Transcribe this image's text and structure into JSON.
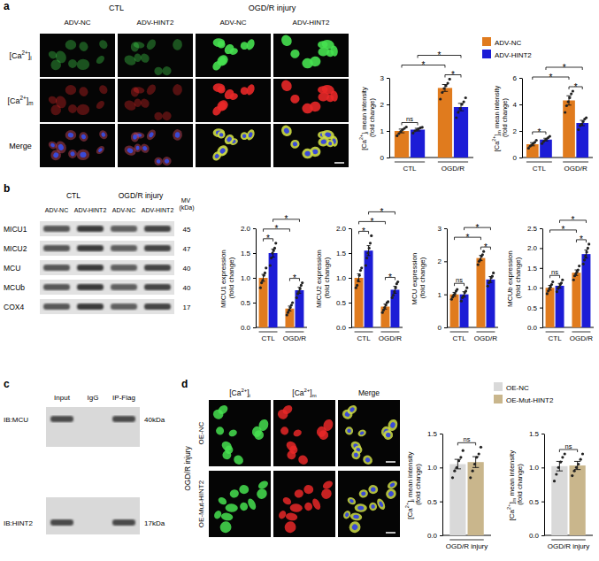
{
  "panels": {
    "a": {
      "letter": "a",
      "groups": [
        {
          "label": "CTL",
          "columns": [
            "ADV-NC",
            "ADV-HINT2"
          ]
        },
        {
          "label": "OGD/R injury",
          "columns": [
            "ADV-NC",
            "ADV-HINT2"
          ]
        }
      ],
      "rows": [
        "[Ca2+]i",
        "[Ca2+]m",
        "Merge"
      ]
    },
    "b": {
      "letter": "b",
      "groups": [
        {
          "label": "CTL",
          "columns": [
            "ADV-NC",
            "ADV-HINT2"
          ]
        },
        {
          "label": "OGD/R injury",
          "columns": [
            "ADV-NC",
            "ADV-HINT2"
          ]
        }
      ],
      "mw_label": "MV (kDa)",
      "bands": [
        {
          "name": "MICU1",
          "mw": 45
        },
        {
          "name": "MICU2",
          "mw": 47
        },
        {
          "name": "MCU",
          "mw": 40
        },
        {
          "name": "MCUb",
          "mw": 40
        },
        {
          "name": "COX4",
          "mw": 17
        }
      ]
    },
    "c": {
      "letter": "c",
      "lanes": [
        "Input",
        "IgG",
        "IP-Flag"
      ],
      "blots": [
        {
          "label": "IB:MCU",
          "mw": "40kDa"
        },
        {
          "label": "IB:HINT2",
          "mw": "17kDa"
        }
      ]
    },
    "d": {
      "letter": "d",
      "condition": "OGD/R injury",
      "rows": [
        "OE-NC",
        "OE-Mut-HINT2"
      ],
      "columns": [
        "[Ca2+]i",
        "[Ca2+]m",
        "Merge"
      ]
    }
  },
  "chart_data": [
    {
      "type": "bar",
      "ylabel": "[Ca2+]i mean intensity (fold change)",
      "legend": "top",
      "categories": [
        "CTL",
        "OGD/R"
      ],
      "ylim": [
        0,
        3
      ],
      "yticks": [
        0,
        1,
        2,
        3
      ],
      "series": [
        {
          "name": "ADV-NC",
          "color": "#E07B1E",
          "values": [
            1.0,
            2.62
          ],
          "errors": [
            0.07,
            0.13
          ],
          "points": [
            [
              0.82,
              0.9,
              0.98,
              1.05,
              1.1,
              1.15
            ],
            [
              2.2,
              2.45,
              2.6,
              2.7,
              2.8,
              2.95
            ]
          ]
        },
        {
          "name": "ADV-HINT2",
          "color": "#1C1CD6",
          "values": [
            1.05,
            1.9
          ],
          "errors": [
            0.05,
            0.14
          ],
          "points": [
            [
              0.92,
              1.0,
              1.04,
              1.08,
              1.12,
              1.14
            ],
            [
              1.5,
              1.7,
              1.85,
              2.0,
              2.1,
              2.25
            ]
          ]
        }
      ],
      "annotations": [
        {
          "text": "ns",
          "bars": [
            0,
            1
          ]
        },
        {
          "text": "*",
          "bars": [
            2,
            3
          ]
        },
        {
          "text": "*",
          "bars": [
            0,
            2
          ]
        },
        {
          "text": "*",
          "bars": [
            1,
            3
          ]
        }
      ]
    },
    {
      "type": "bar",
      "ylabel": "[Ca2+]m mean intensity (fold change)",
      "categories": [
        "CTL",
        "OGD/R"
      ],
      "ylim": [
        0,
        6
      ],
      "yticks": [
        0,
        2,
        4,
        6
      ],
      "series": [
        {
          "name": "ADV-NC",
          "color": "#E07B1E",
          "values": [
            1.0,
            4.3
          ],
          "errors": [
            0.12,
            0.35
          ],
          "points": [
            [
              0.7,
              0.85,
              0.95,
              1.05,
              1.15,
              1.3
            ],
            [
              3.4,
              3.9,
              4.2,
              4.5,
              4.8,
              5.0
            ]
          ]
        },
        {
          "name": "ADV-HINT2",
          "color": "#1C1CD6",
          "values": [
            1.35,
            2.6
          ],
          "errors": [
            0.1,
            0.2
          ],
          "points": [
            [
              1.05,
              1.2,
              1.3,
              1.4,
              1.5,
              1.6
            ],
            [
              2.1,
              2.4,
              2.5,
              2.7,
              2.9,
              3.0
            ]
          ]
        }
      ],
      "annotations": [
        {
          "text": "*",
          "bars": [
            0,
            1
          ]
        },
        {
          "text": "*",
          "bars": [
            2,
            3
          ]
        },
        {
          "text": "*",
          "bars": [
            0,
            2
          ]
        },
        {
          "text": "*",
          "bars": [
            1,
            3
          ]
        }
      ]
    },
    {
      "type": "bar",
      "ylabel": "MICU1 expression (fold change)",
      "categories": [
        "CTL",
        "OGD/R"
      ],
      "ylim": [
        0,
        2
      ],
      "yticks": [
        {
          "value": 0,
          "label": "0.0"
        },
        {
          "value": 0.5,
          "label": "0.5"
        },
        {
          "value": 1,
          "label": "1.0"
        },
        {
          "value": 1.5,
          "label": "1.5"
        },
        {
          "value": 2,
          "label": "2.0"
        }
      ],
      "series": [
        {
          "name": "ADV-NC",
          "color": "#E07B1E",
          "values": [
            1.0,
            0.38
          ],
          "errors": [
            0.07,
            0.05
          ],
          "points": [
            [
              0.8,
              0.9,
              0.95,
              1.05,
              1.1,
              1.2
            ],
            [
              0.25,
              0.3,
              0.35,
              0.4,
              0.45,
              0.5
            ]
          ]
        },
        {
          "name": "ADV-HINT2",
          "color": "#1C1CD6",
          "values": [
            1.5,
            0.75
          ],
          "errors": [
            0.08,
            0.06
          ],
          "points": [
            [
              1.25,
              1.4,
              1.5,
              1.55,
              1.6,
              1.7
            ],
            [
              0.6,
              0.68,
              0.72,
              0.78,
              0.85,
              0.9
            ]
          ]
        }
      ],
      "annotations": [
        {
          "text": "*",
          "bars": [
            0,
            1
          ]
        },
        {
          "text": "*",
          "bars": [
            2,
            3
          ]
        },
        {
          "text": "*",
          "bars": [
            0,
            2
          ]
        },
        {
          "text": "*",
          "bars": [
            1,
            3
          ]
        }
      ]
    },
    {
      "type": "bar",
      "ylabel": "MICU2 expression (fold change)",
      "categories": [
        "CTL",
        "OGD/R"
      ],
      "ylim": [
        0,
        2
      ],
      "yticks": [
        {
          "value": 0,
          "label": "0.0"
        },
        {
          "value": 0.5,
          "label": "0.5"
        },
        {
          "value": 1,
          "label": "1.0"
        },
        {
          "value": 1.5,
          "label": "1.5"
        },
        {
          "value": 2,
          "label": "2.0"
        }
      ],
      "series": [
        {
          "name": "ADV-NC",
          "color": "#E07B1E",
          "values": [
            1.0,
            0.42
          ],
          "errors": [
            0.08,
            0.05
          ],
          "points": [
            [
              0.8,
              0.85,
              0.95,
              1.05,
              1.15,
              1.2
            ],
            [
              0.3,
              0.35,
              0.4,
              0.45,
              0.5,
              0.52
            ]
          ]
        },
        {
          "name": "ADV-HINT2",
          "color": "#1C1CD6",
          "values": [
            1.55,
            0.76
          ],
          "errors": [
            0.1,
            0.07
          ],
          "points": [
            [
              1.25,
              1.4,
              1.5,
              1.6,
              1.7,
              1.85
            ],
            [
              0.6,
              0.65,
              0.72,
              0.8,
              0.88,
              0.92
            ]
          ]
        }
      ],
      "annotations": [
        {
          "text": "*",
          "bars": [
            0,
            1
          ]
        },
        {
          "text": "*",
          "bars": [
            2,
            3
          ]
        },
        {
          "text": "*",
          "bars": [
            0,
            2
          ]
        },
        {
          "text": "*",
          "bars": [
            1,
            3
          ]
        }
      ]
    },
    {
      "type": "bar",
      "ylabel": "MCU expression (fold change)",
      "categories": [
        "CTL",
        "OGD/R"
      ],
      "ylim": [
        0,
        3
      ],
      "yticks": [
        0,
        1,
        2,
        3
      ],
      "series": [
        {
          "name": "ADV-NC",
          "color": "#E07B1E",
          "values": [
            1.0,
            2.1
          ],
          "errors": [
            0.06,
            0.08
          ],
          "points": [
            [
              0.85,
              0.92,
              0.98,
              1.02,
              1.1,
              1.15
            ],
            [
              1.9,
              2.0,
              2.05,
              2.15,
              2.2,
              2.3
            ]
          ]
        },
        {
          "name": "ADV-HINT2",
          "color": "#1C1CD6",
          "values": [
            1.0,
            1.45
          ],
          "errors": [
            0.08,
            0.09
          ],
          "points": [
            [
              0.8,
              0.9,
              0.95,
              1.05,
              1.1,
              1.2
            ],
            [
              1.25,
              1.35,
              1.4,
              1.5,
              1.55,
              1.65
            ]
          ]
        }
      ],
      "annotations": [
        {
          "text": "ns",
          "bars": [
            0,
            1
          ]
        },
        {
          "text": "*",
          "bars": [
            2,
            3
          ]
        },
        {
          "text": "*",
          "bars": [
            0,
            2
          ]
        },
        {
          "text": "*",
          "bars": [
            1,
            3
          ]
        }
      ]
    },
    {
      "type": "bar",
      "ylabel": "MCUb expression (fold change)",
      "categories": [
        "CTL",
        "OGD/R"
      ],
      "ylim": [
        0,
        2.5
      ],
      "yticks": [
        {
          "value": 0,
          "label": "0.0"
        },
        {
          "value": 0.5,
          "label": "0.5"
        },
        {
          "value": 1,
          "label": "1.0"
        },
        {
          "value": 1.5,
          "label": "1.5"
        },
        {
          "value": 2,
          "label": "2.0"
        },
        {
          "value": 2.5,
          "label": "2.5"
        }
      ],
      "series": [
        {
          "name": "ADV-NC",
          "color": "#E07B1E",
          "values": [
            1.0,
            1.38
          ],
          "errors": [
            0.06,
            0.07
          ],
          "points": [
            [
              0.85,
              0.92,
              0.98,
              1.02,
              1.08,
              1.15
            ],
            [
              1.2,
              1.3,
              1.35,
              1.4,
              1.45,
              1.55
            ]
          ]
        },
        {
          "name": "ADV-HINT2",
          "color": "#1C1CD6",
          "values": [
            1.05,
            1.85
          ],
          "errors": [
            0.06,
            0.1
          ],
          "points": [
            [
              0.9,
              0.98,
              1.02,
              1.08,
              1.12,
              1.2
            ],
            [
              1.6,
              1.7,
              1.8,
              1.9,
              2.0,
              2.1
            ]
          ]
        }
      ],
      "annotations": [
        {
          "text": "ns",
          "bars": [
            0,
            1
          ]
        },
        {
          "text": "*",
          "bars": [
            2,
            3
          ]
        },
        {
          "text": "*",
          "bars": [
            0,
            2
          ]
        },
        {
          "text": "*",
          "bars": [
            1,
            3
          ]
        }
      ]
    },
    {
      "type": "bar",
      "ylabel": "[Ca2+]i mean intensity (fold change)",
      "legend": "top",
      "categories": [
        "OGD/R injury"
      ],
      "ylim": [
        0,
        1.5
      ],
      "yticks": [
        {
          "value": 0,
          "label": "0.0"
        },
        {
          "value": 0.5,
          "label": "0.5"
        },
        {
          "value": 1,
          "label": "1.0"
        },
        {
          "value": 1.5,
          "label": "1.5"
        }
      ],
      "series": [
        {
          "name": "OE-NC",
          "color": "#D9D9D9",
          "values": [
            1.05
          ],
          "errors": [
            0.07
          ],
          "points": [
            [
              0.85,
              0.95,
              1.0,
              1.1,
              1.15,
              1.25
            ]
          ]
        },
        {
          "name": "OE-Mut-HINT2",
          "color": "#C9B68C",
          "values": [
            1.08
          ],
          "errors": [
            0.08
          ],
          "points": [
            [
              0.85,
              0.95,
              1.05,
              1.15,
              1.2,
              1.3
            ]
          ]
        }
      ],
      "annotations": [
        {
          "text": "ns",
          "bars": [
            0,
            1
          ]
        }
      ]
    },
    {
      "type": "bar",
      "ylabel": "[Ca2+]m mean intensity (fold change)",
      "categories": [
        "OGD/R injury"
      ],
      "ylim": [
        0,
        1.5
      ],
      "yticks": [
        {
          "value": 0,
          "label": "0.0"
        },
        {
          "value": 0.5,
          "label": "0.5"
        },
        {
          "value": 1,
          "label": "1.0"
        },
        {
          "value": 1.5,
          "label": "1.5"
        }
      ],
      "series": [
        {
          "name": "OE-NC",
          "color": "#D9D9D9",
          "values": [
            1.02
          ],
          "errors": [
            0.07
          ],
          "points": [
            [
              0.8,
              0.9,
              1.0,
              1.08,
              1.15,
              1.2
            ]
          ]
        },
        {
          "name": "OE-Mut-HINT2",
          "color": "#C9B68C",
          "values": [
            1.03
          ],
          "errors": [
            0.06
          ],
          "points": [
            [
              0.88,
              0.95,
              1.0,
              1.05,
              1.12,
              1.2
            ]
          ]
        }
      ],
      "annotations": [
        {
          "text": "ns",
          "bars": [
            0,
            1
          ]
        }
      ]
    }
  ]
}
